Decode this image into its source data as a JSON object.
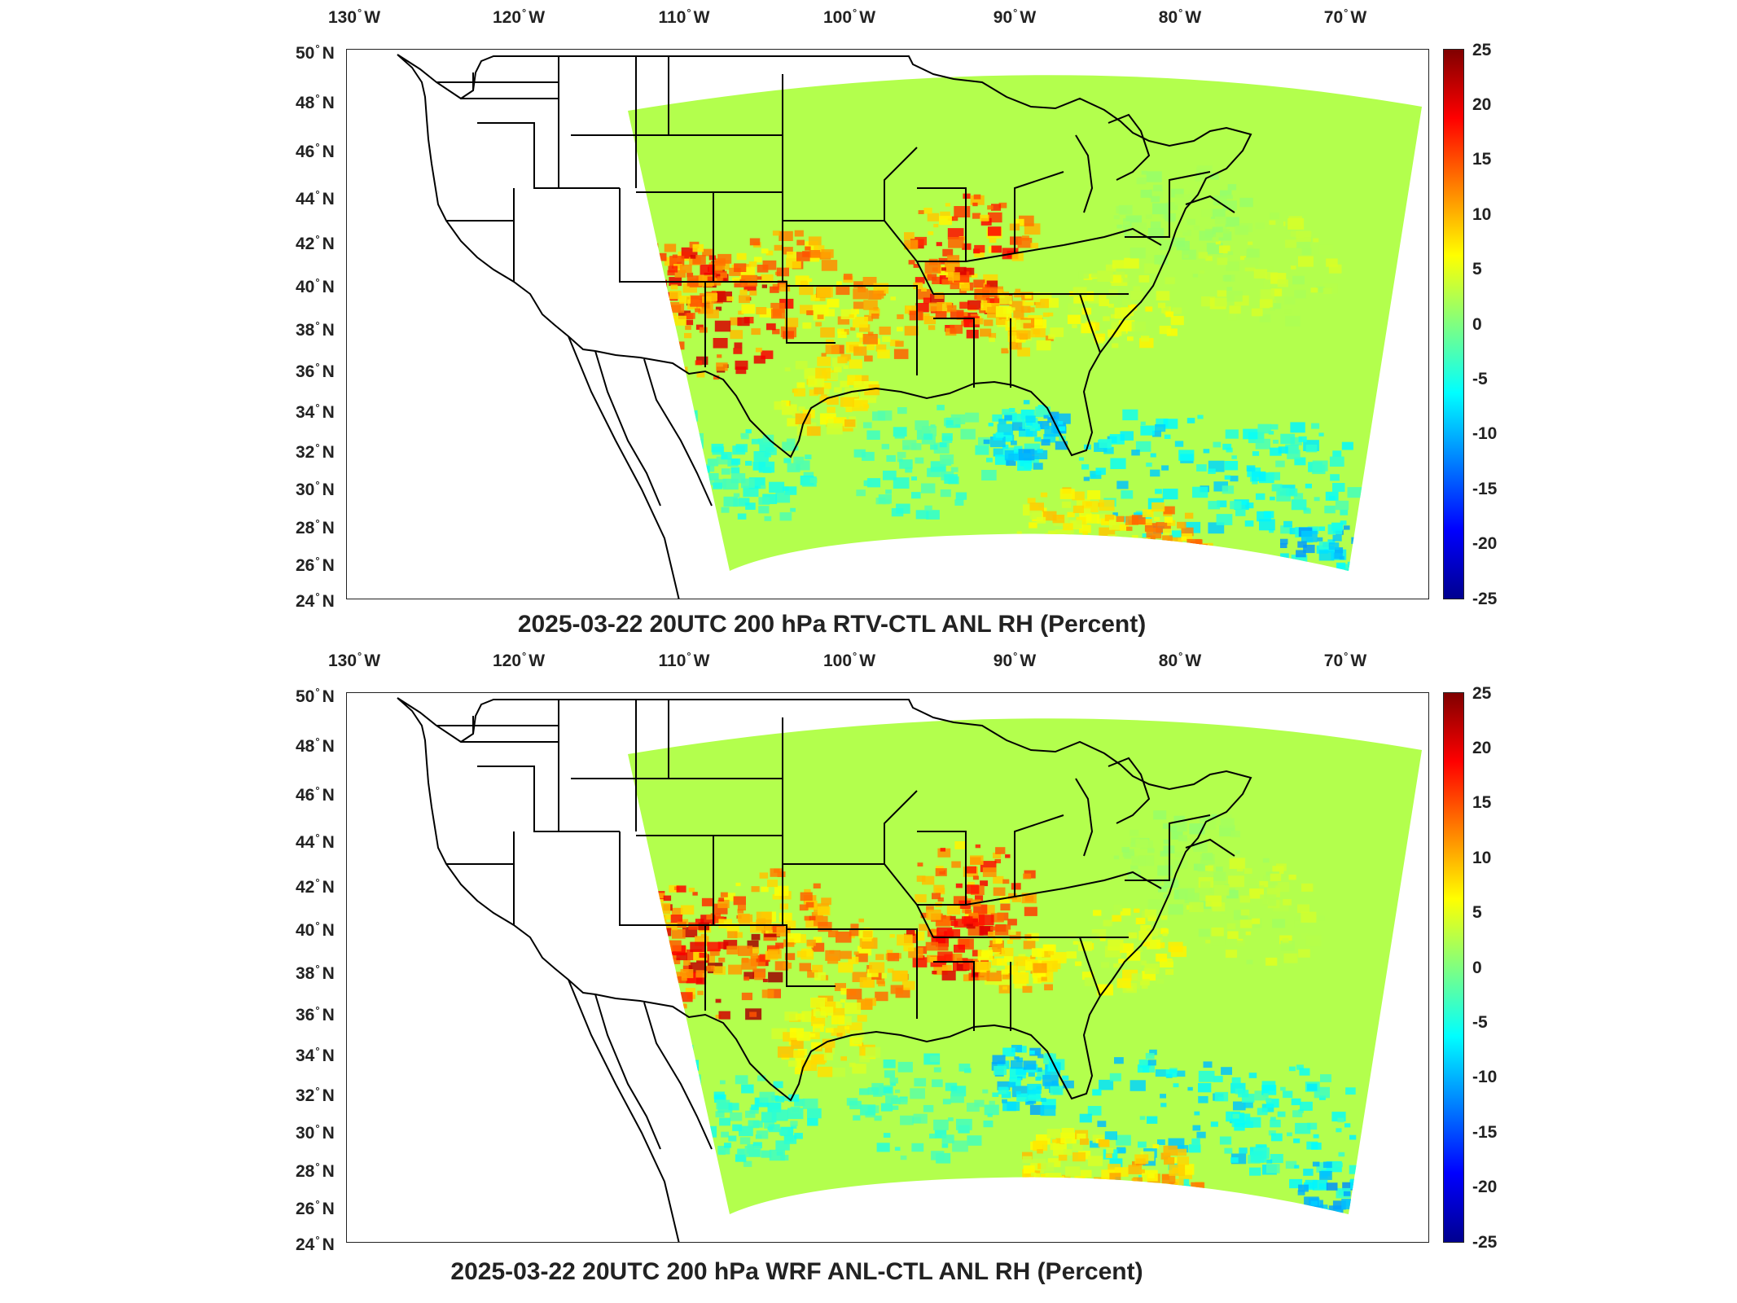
{
  "panels": [
    {
      "title": "2025-03-22 20UTC 200 hPa RTV-CTL ANL RH (Percent)",
      "lon_labels": [
        "130",
        "120",
        "110",
        "100",
        "90",
        "80",
        "70"
      ],
      "lon_suffix": "W",
      "lat_labels": [
        "50",
        "48",
        "46",
        "44",
        "42",
        "40",
        "38",
        "36",
        "34",
        "32",
        "30",
        "28",
        "26",
        "24"
      ],
      "lat_suffix": "N",
      "colorbar_ticks": [
        "25",
        "20",
        "15",
        "10",
        "5",
        "0",
        "-5",
        "-10",
        "-15",
        "-20",
        "-25"
      ]
    },
    {
      "title": "2025-03-22 20UTC 200 hPa WRF ANL-CTL ANL RH (Percent)",
      "lon_labels": [
        "130",
        "120",
        "110",
        "100",
        "90",
        "80",
        "70"
      ],
      "lon_suffix": "W",
      "lat_labels": [
        "50",
        "48",
        "46",
        "44",
        "42",
        "40",
        "38",
        "36",
        "34",
        "32",
        "30",
        "28",
        "26",
        "24"
      ],
      "lat_suffix": "N",
      "colorbar_ticks": [
        "25",
        "20",
        "15",
        "10",
        "5",
        "0",
        "-5",
        "-10",
        "-15",
        "-20",
        "-25"
      ]
    }
  ],
  "colormap": {
    "name": "jet",
    "range": [
      -25,
      25
    ],
    "colors": [
      "#00008f",
      "#0000ff",
      "#0080ff",
      "#00ffff",
      "#80ff80",
      "#ffff00",
      "#ff8000",
      "#ff0000",
      "#800000"
    ]
  }
}
